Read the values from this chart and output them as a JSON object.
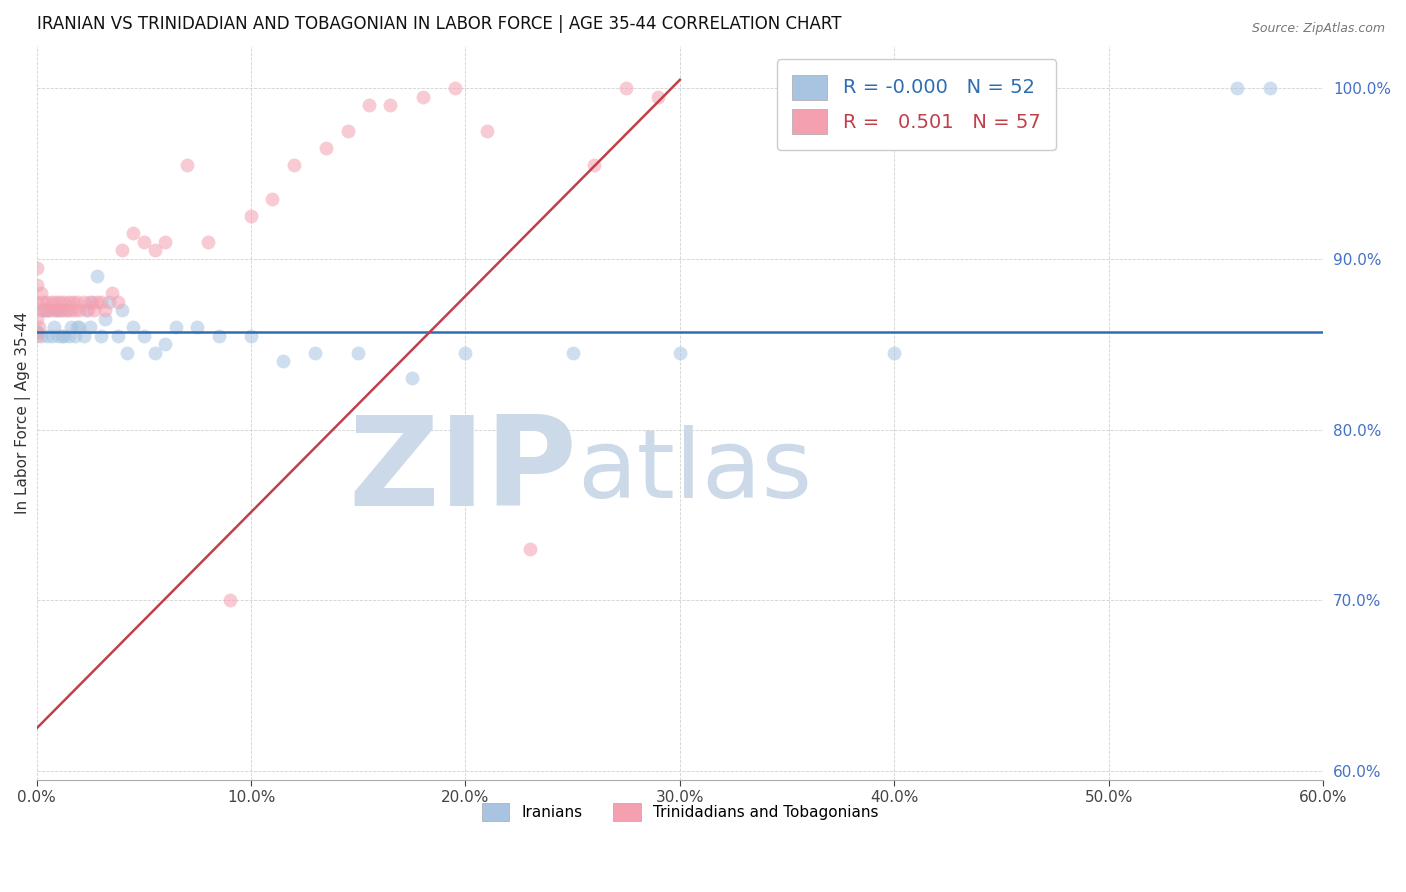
{
  "title": "IRANIAN VS TRINIDADIAN AND TOBAGONIAN IN LABOR FORCE | AGE 35-44 CORRELATION CHART",
  "source": "Source: ZipAtlas.com",
  "ylabel": "In Labor Force | Age 35-44",
  "xlim": [
    0.0,
    0.6
  ],
  "ylim": [
    0.595,
    1.025
  ],
  "xticks": [
    0.0,
    0.1,
    0.2,
    0.3,
    0.4,
    0.5,
    0.6
  ],
  "yticks": [
    0.6,
    0.7,
    0.8,
    0.9,
    1.0
  ],
  "iranian_color": "#a8c4e0",
  "trinidadian_color": "#f4a0b0",
  "iranian_line_color": "#2e6db4",
  "trinidadian_line_color": "#c0404a",
  "legend_iranian_r": "-0.000",
  "legend_iranian_n": "52",
  "legend_trinidadian_r": "0.501",
  "legend_trinidadian_n": "57",
  "iranians_x": [
    0.0,
    0.0,
    0.0,
    0.002,
    0.003,
    0.004,
    0.005,
    0.005,
    0.006,
    0.007,
    0.008,
    0.009,
    0.01,
    0.01,
    0.012,
    0.012,
    0.013,
    0.014,
    0.015,
    0.016,
    0.018,
    0.019,
    0.02,
    0.022,
    0.023,
    0.025,
    0.026,
    0.028,
    0.03,
    0.032,
    0.034,
    0.038,
    0.04,
    0.042,
    0.045,
    0.05,
    0.055,
    0.06,
    0.065,
    0.075,
    0.085,
    0.1,
    0.115,
    0.13,
    0.15,
    0.175,
    0.2,
    0.25,
    0.3,
    0.4,
    0.56,
    0.575
  ],
  "iranians_y": [
    0.857,
    0.857,
    0.857,
    0.855,
    0.87,
    0.87,
    0.855,
    0.87,
    0.87,
    0.855,
    0.86,
    0.87,
    0.855,
    0.87,
    0.855,
    0.87,
    0.855,
    0.87,
    0.855,
    0.86,
    0.855,
    0.86,
    0.86,
    0.855,
    0.87,
    0.86,
    0.875,
    0.89,
    0.855,
    0.865,
    0.875,
    0.855,
    0.87,
    0.845,
    0.86,
    0.855,
    0.845,
    0.85,
    0.86,
    0.86,
    0.855,
    0.855,
    0.84,
    0.845,
    0.845,
    0.83,
    0.845,
    0.845,
    0.845,
    0.845,
    1.0,
    1.0
  ],
  "trinidadians_x": [
    0.0,
    0.0,
    0.0,
    0.0,
    0.0,
    0.001,
    0.002,
    0.002,
    0.003,
    0.004,
    0.005,
    0.006,
    0.007,
    0.008,
    0.009,
    0.01,
    0.011,
    0.012,
    0.013,
    0.014,
    0.015,
    0.016,
    0.017,
    0.018,
    0.019,
    0.02,
    0.022,
    0.024,
    0.025,
    0.027,
    0.028,
    0.03,
    0.032,
    0.035,
    0.038,
    0.04,
    0.045,
    0.05,
    0.055,
    0.06,
    0.07,
    0.08,
    0.09,
    0.1,
    0.11,
    0.12,
    0.135,
    0.145,
    0.155,
    0.165,
    0.18,
    0.195,
    0.21,
    0.23,
    0.26,
    0.275,
    0.29
  ],
  "trinidadians_y": [
    0.855,
    0.865,
    0.875,
    0.885,
    0.895,
    0.86,
    0.87,
    0.88,
    0.875,
    0.87,
    0.875,
    0.87,
    0.875,
    0.87,
    0.875,
    0.87,
    0.875,
    0.87,
    0.875,
    0.87,
    0.875,
    0.87,
    0.875,
    0.87,
    0.875,
    0.87,
    0.875,
    0.87,
    0.875,
    0.87,
    0.875,
    0.875,
    0.87,
    0.88,
    0.875,
    0.905,
    0.915,
    0.91,
    0.905,
    0.91,
    0.955,
    0.91,
    0.7,
    0.925,
    0.935,
    0.955,
    0.965,
    0.975,
    0.99,
    0.99,
    0.995,
    1.0,
    0.975,
    0.73,
    0.955,
    1.0,
    0.995
  ],
  "pink_trendline_x": [
    0.0,
    0.3
  ],
  "pink_trendline_y": [
    0.625,
    1.005
  ],
  "blue_trendline_y": 0.857,
  "background_color": "#ffffff",
  "watermark_zip": "ZIP",
  "watermark_atlas": "atlas",
  "watermark_color": "#ccd9e8",
  "marker_size": 100,
  "marker_alpha": 0.55,
  "title_fontsize": 12,
  "axis_label_fontsize": 11,
  "tick_fontsize": 11,
  "right_tick_color": "#4472c4"
}
